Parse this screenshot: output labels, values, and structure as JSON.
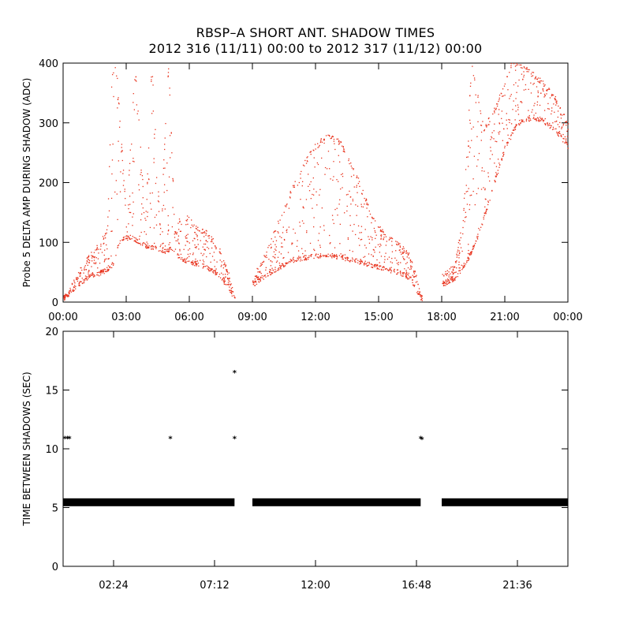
{
  "title": "RBSP–A SHORT ANT. SHADOW TIMES",
  "subtitle": "2012 316 (11/11) 00:00 to 2012 317 (11/12) 00:00",
  "colors": {
    "amp_points": "#e8321c",
    "interval_points": "#000000",
    "axes": "#000000"
  },
  "chart_data": [
    {
      "type": "scatter",
      "ylabel": "Probe 5 DELTA AMP DURING SHADOW (ADC)",
      "xlabel": "",
      "xlim": [
        0,
        24
      ],
      "ylim": [
        0,
        400
      ],
      "x_tick_labels": [
        {
          "x": 0,
          "label": "00:00"
        },
        {
          "x": 3,
          "label": "03:00"
        },
        {
          "x": 6,
          "label": "06:00"
        },
        {
          "x": 9,
          "label": "09:00"
        },
        {
          "x": 12,
          "label": "12:00"
        },
        {
          "x": 15,
          "label": "15:00"
        },
        {
          "x": 18,
          "label": "18:00"
        },
        {
          "x": 21,
          "label": "21:00"
        },
        {
          "x": 24,
          "label": "00:00"
        }
      ],
      "y_ticks": [
        0,
        100,
        200,
        300,
        400
      ],
      "grid": false,
      "series": [
        {
          "description_units": "hours since 00:00 vs ADC",
          "lower_envelope": [
            [
              0.1,
              8
            ],
            [
              0.6,
              28
            ],
            [
              1.2,
              42
            ],
            [
              1.8,
              50
            ],
            [
              2.2,
              58
            ],
            [
              2.4,
              68
            ],
            [
              2.7,
              105
            ],
            [
              3.2,
              110
            ],
            [
              3.8,
              96
            ],
            [
              4.3,
              92
            ],
            [
              4.8,
              86
            ],
            [
              5.2,
              90
            ],
            [
              5.6,
              72
            ],
            [
              6.2,
              66
            ],
            [
              6.8,
              60
            ],
            [
              7.3,
              48
            ],
            [
              7.8,
              28
            ],
            [
              8.1,
              8
            ],
            [
              9.0,
              30
            ],
            [
              9.6,
              45
            ],
            [
              10.3,
              60
            ],
            [
              11.0,
              72
            ],
            [
              12.0,
              78
            ],
            [
              12.8,
              78
            ],
            [
              13.6,
              72
            ],
            [
              14.5,
              64
            ],
            [
              15.3,
              56
            ],
            [
              16.0,
              50
            ],
            [
              16.5,
              40
            ],
            [
              16.8,
              20
            ],
            [
              17.0,
              5
            ],
            [
              18.0,
              30
            ],
            [
              18.6,
              40
            ],
            [
              19.2,
              70
            ],
            [
              19.8,
              120
            ],
            [
              20.4,
              190
            ],
            [
              21.0,
              260
            ],
            [
              21.6,
              300
            ],
            [
              22.3,
              310
            ],
            [
              23.0,
              300
            ],
            [
              23.6,
              280
            ],
            [
              24.0,
              260
            ]
          ],
          "upper_envelope": [
            [
              0.1,
              12
            ],
            [
              0.6,
              42
            ],
            [
              1.2,
              75
            ],
            [
              1.8,
              100
            ],
            [
              2.1,
              130
            ],
            [
              2.3,
              380
            ],
            [
              2.5,
              400
            ],
            [
              3.0,
              140
            ],
            [
              3.4,
              400
            ],
            [
              3.9,
              130
            ],
            [
              4.2,
              400
            ],
            [
              4.6,
              120
            ],
            [
              5.0,
              400
            ],
            [
              5.3,
              110
            ],
            [
              5.6,
              150
            ],
            [
              6.2,
              130
            ],
            [
              6.8,
              115
            ],
            [
              7.4,
              90
            ],
            [
              7.8,
              55
            ],
            [
              8.1,
              12
            ],
            [
              9.0,
              38
            ],
            [
              9.6,
              80
            ],
            [
              10.3,
              140
            ],
            [
              11.0,
              200
            ],
            [
              11.8,
              255
            ],
            [
              12.6,
              280
            ],
            [
              13.2,
              265
            ],
            [
              13.9,
              215
            ],
            [
              14.6,
              150
            ],
            [
              15.3,
              110
            ],
            [
              15.9,
              100
            ],
            [
              16.4,
              80
            ],
            [
              16.8,
              40
            ],
            [
              17.0,
              10
            ],
            [
              18.0,
              45
            ],
            [
              18.6,
              60
            ],
            [
              19.0,
              140
            ],
            [
              19.4,
              400
            ],
            [
              20.0,
              290
            ],
            [
              20.6,
              330
            ],
            [
              21.3,
              400
            ],
            [
              22.0,
              390
            ],
            [
              22.7,
              370
            ],
            [
              23.4,
              340
            ],
            [
              24.0,
              300
            ]
          ]
        }
      ]
    },
    {
      "type": "scatter",
      "ylabel": "TIME BETWEEN SHADOWS (SEC)",
      "xlabel": "",
      "xlim": [
        0,
        24
      ],
      "ylim": [
        0,
        20
      ],
      "x_tick_labels": [
        {
          "x": 2.4,
          "label": "02:24"
        },
        {
          "x": 7.2,
          "label": "07:12"
        },
        {
          "x": 12.0,
          "label": "12:00"
        },
        {
          "x": 16.8,
          "label": "16:48"
        },
        {
          "x": 21.6,
          "label": "21:36"
        }
      ],
      "y_ticks": [
        0,
        5,
        10,
        15,
        20
      ],
      "grid": false,
      "band_value": 5.45,
      "band_segments": [
        [
          0.0,
          8.15
        ],
        [
          9.0,
          17.0
        ],
        [
          18.0,
          24.0
        ]
      ],
      "outliers": [
        {
          "x": 0.08,
          "y": 10.9
        },
        {
          "x": 0.2,
          "y": 10.9
        },
        {
          "x": 0.3,
          "y": 10.9
        },
        {
          "x": 5.1,
          "y": 10.9
        },
        {
          "x": 8.15,
          "y": 10.9
        },
        {
          "x": 8.15,
          "y": 16.5
        },
        {
          "x": 17.0,
          "y": 10.9
        },
        {
          "x": 17.06,
          "y": 10.85
        }
      ]
    }
  ]
}
